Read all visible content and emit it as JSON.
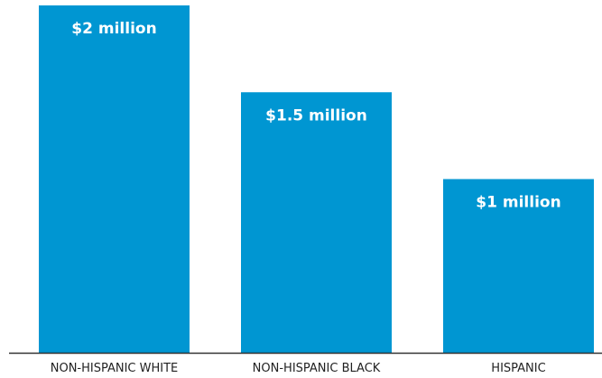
{
  "chart_data": {
    "type": "bar",
    "categories": [
      "NON-HISPANIC WHITE",
      "NON-HISPANIC BLACK",
      "HISPANIC"
    ],
    "values": [
      2,
      1.5,
      1
    ],
    "value_unit": "million USD",
    "data_labels": [
      "$2 million",
      "$1.5 million",
      "$1 million"
    ],
    "title": "",
    "xlabel": "",
    "ylabel": "",
    "ylim": [
      0,
      2
    ],
    "grid": false,
    "legend": "none",
    "colors": {
      "bar": "#0096D2",
      "axis": "#333333",
      "bar_label": "#ffffff",
      "tick_label": "#222222"
    }
  }
}
